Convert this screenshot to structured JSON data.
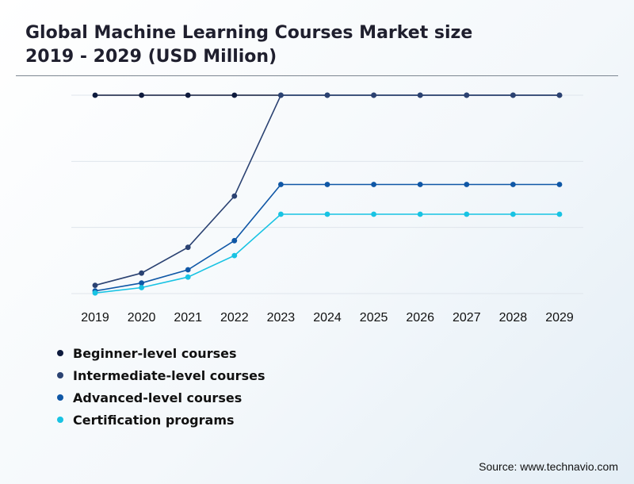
{
  "header": {
    "title_line1": "Global Machine Learning Courses Market size",
    "title_line2": "2019 - 2029 (USD Million)"
  },
  "chart_data": {
    "type": "line",
    "title": "Global Machine Learning Courses Market size 2019 - 2029 (USD Million)",
    "x": [
      "2019",
      "2020",
      "2021",
      "2022",
      "2023",
      "2024",
      "2025",
      "2026",
      "2027",
      "2028",
      "2029"
    ],
    "ylim": [
      0,
      6
    ],
    "grid": true,
    "y_tick_labels_shown": false,
    "legend_position": "bottom-left",
    "series": [
      {
        "name": "Beginner-level courses",
        "color": "#0e1a3d",
        "values": [
          6,
          6,
          6,
          6,
          6,
          6,
          6,
          6,
          6,
          6,
          6
        ]
      },
      {
        "name": "Intermediate-level courses",
        "color": "#2b4272",
        "values": [
          0.25,
          0.62,
          1.4,
          2.95,
          6,
          6,
          6,
          6,
          6,
          6,
          6
        ]
      },
      {
        "name": "Advanced-level courses",
        "color": "#0f57a6",
        "values": [
          0.08,
          0.32,
          0.72,
          1.6,
          3.3,
          3.3,
          3.3,
          3.3,
          3.3,
          3.3,
          3.3
        ]
      },
      {
        "name": "Certification programs",
        "color": "#18c3e3",
        "values": [
          0.02,
          0.18,
          0.5,
          1.15,
          2.4,
          2.4,
          2.4,
          2.4,
          2.4,
          2.4,
          2.4
        ]
      }
    ]
  },
  "footer": {
    "source": "Source: www.technavio.com"
  }
}
